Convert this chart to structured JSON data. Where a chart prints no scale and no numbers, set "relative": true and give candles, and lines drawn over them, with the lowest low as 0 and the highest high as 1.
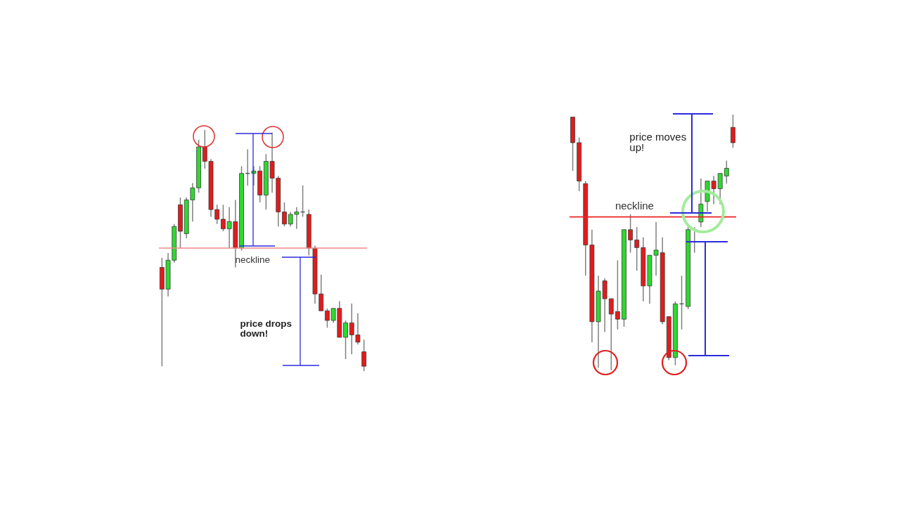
{
  "chart_data": [
    {
      "type": "candlestick",
      "relative": true,
      "categories": [
        null,
        null,
        null,
        null,
        null,
        null,
        null,
        null,
        null,
        null,
        null,
        null,
        null,
        null,
        null,
        null,
        null,
        null,
        null,
        null,
        null,
        null,
        null,
        null,
        null,
        null,
        null,
        null,
        null,
        null,
        null,
        null,
        null,
        null
      ],
      "ohlc": [
        [
          0.43,
          0.47,
          0.02,
          0.34
        ],
        [
          0.34,
          0.49,
          0.31,
          0.46
        ],
        [
          0.46,
          0.61,
          0.45,
          0.6
        ],
        [
          0.69,
          0.72,
          0.51,
          0.58
        ],
        [
          0.57,
          0.72,
          0.55,
          0.71
        ],
        [
          0.71,
          0.78,
          0.62,
          0.76
        ],
        [
          0.76,
          0.96,
          0.74,
          0.93
        ],
        [
          0.93,
          1.0,
          0.84,
          0.87
        ],
        [
          0.87,
          0.88,
          0.64,
          0.67
        ],
        [
          0.67,
          0.69,
          0.61,
          0.63
        ],
        [
          0.63,
          0.69,
          0.58,
          0.59
        ],
        [
          0.59,
          0.68,
          0.51,
          0.62
        ],
        [
          0.62,
          0.71,
          0.43,
          0.51
        ],
        [
          0.51,
          0.85,
          0.5,
          0.82
        ],
        [
          0.82,
          0.92,
          0.77,
          0.82
        ],
        [
          0.82,
          0.85,
          0.77,
          0.83
        ],
        [
          0.83,
          0.85,
          0.7,
          0.73
        ],
        [
          0.73,
          0.9,
          0.67,
          0.87
        ],
        [
          0.87,
          0.99,
          0.74,
          0.8
        ],
        [
          0.8,
          0.81,
          0.6,
          0.66
        ],
        [
          0.66,
          0.7,
          0.6,
          0.61
        ],
        [
          0.61,
          0.66,
          0.6,
          0.65
        ],
        [
          0.65,
          0.68,
          0.59,
          0.66
        ],
        [
          0.66,
          0.77,
          0.64,
          0.66
        ],
        [
          0.65,
          0.67,
          0.48,
          0.51
        ],
        [
          0.51,
          0.52,
          0.28,
          0.32
        ],
        [
          0.32,
          0.4,
          0.25,
          0.25
        ],
        [
          0.25,
          0.26,
          0.18,
          0.21
        ],
        [
          0.21,
          0.26,
          0.2,
          0.26
        ],
        [
          0.26,
          0.29,
          0.14,
          0.14
        ],
        [
          0.14,
          0.21,
          0.05,
          0.2
        ],
        [
          0.2,
          0.28,
          0.07,
          0.15
        ],
        [
          0.15,
          0.24,
          0.11,
          0.12
        ],
        [
          0.08,
          0.13,
          0.0,
          0.02
        ]
      ],
      "colors": [
        "#e31b1b",
        "#2fd92f",
        "#2fd92f",
        "#e31b1b",
        "#2fd92f",
        "#2fd92f",
        "#2fd92f",
        "#e31b1b",
        "#e31b1b",
        "#e31b1b",
        "#e31b1b",
        "#2fd92f",
        "#e31b1b",
        "#2fd92f",
        "#333333",
        "#2fd92f",
        "#e31b1b",
        "#2fd92f",
        "#e31b1b",
        "#e31b1b",
        "#e31b1b",
        "#2fd92f",
        "#2fd92f",
        "#333333",
        "#e31b1b",
        "#e31b1b",
        "#e31b1b",
        "#e31b1b",
        "#2fd92f",
        "#e31b1b",
        "#2fd92f",
        "#e31b1b",
        "#e31b1b",
        "#e31b1b"
      ],
      "ref_lines": [
        {
          "axis": "y",
          "value": 0.51,
          "label": "neckline",
          "color": "#f08a8a"
        }
      ],
      "annotations": [
        "price drops\ndown!"
      ]
    },
    {
      "type": "candlestick",
      "relative": true,
      "categories": [
        null,
        null,
        null,
        null,
        null,
        null,
        null,
        null,
        null,
        null,
        null,
        null,
        null,
        null,
        null,
        null,
        null,
        null,
        null,
        null,
        null,
        null,
        null,
        null,
        null,
        null
      ],
      "ohlc": [
        [
          0.99,
          0.99,
          0.78,
          0.89
        ],
        [
          0.89,
          0.91,
          0.7,
          0.74
        ],
        [
          0.73,
          0.74,
          0.37,
          0.49
        ],
        [
          0.49,
          0.55,
          0.11,
          0.19
        ],
        [
          0.19,
          0.37,
          0.01,
          0.31
        ],
        [
          0.35,
          0.36,
          0.15,
          0.28
        ],
        [
          0.28,
          0.28,
          0.0,
          0.22
        ],
        [
          0.23,
          0.43,
          0.16,
          0.2
        ],
        [
          0.2,
          0.55,
          0.17,
          0.55
        ],
        [
          0.55,
          0.61,
          0.46,
          0.51
        ],
        [
          0.51,
          0.56,
          0.39,
          0.48
        ],
        [
          0.48,
          0.52,
          0.27,
          0.33
        ],
        [
          0.33,
          0.45,
          0.26,
          0.45
        ],
        [
          0.45,
          0.58,
          0.37,
          0.47
        ],
        [
          0.46,
          0.52,
          0.18,
          0.19
        ],
        [
          0.21,
          0.21,
          0.04,
          0.05
        ],
        [
          0.05,
          0.27,
          0.02,
          0.26
        ],
        [
          0.26,
          0.37,
          0.16,
          0.26
        ],
        [
          0.25,
          0.56,
          0.24,
          0.55
        ],
        [
          0.55,
          0.56,
          0.46,
          0.55
        ],
        [
          0.58,
          0.75,
          0.56,
          0.65
        ],
        [
          0.66,
          0.74,
          0.62,
          0.74
        ],
        [
          0.74,
          0.76,
          0.65,
          0.71
        ],
        [
          0.71,
          0.77,
          0.65,
          0.77
        ],
        [
          0.76,
          0.82,
          0.73,
          0.79
        ],
        [
          0.95,
          1.0,
          0.87,
          0.89
        ]
      ],
      "colors": [
        "#e31b1b",
        "#e31b1b",
        "#e31b1b",
        "#e31b1b",
        "#2fd92f",
        "#e31b1b",
        "#e31b1b",
        "#e31b1b",
        "#2fd92f",
        "#e31b1b",
        "#e31b1b",
        "#e31b1b",
        "#2fd92f",
        "#2fd92f",
        "#e31b1b",
        "#e31b1b",
        "#2fd92f",
        "#333333",
        "#2fd92f",
        "#333333",
        "#2fd92f",
        "#2fd92f",
        "#e31b1b",
        "#2fd92f",
        "#2fd92f",
        "#e31b1b"
      ],
      "ref_lines": [
        {
          "axis": "y",
          "value": 0.6,
          "label": "neckline",
          "color": "#ee2222"
        }
      ],
      "annotations": [
        "price moves\nup!"
      ]
    }
  ]
}
